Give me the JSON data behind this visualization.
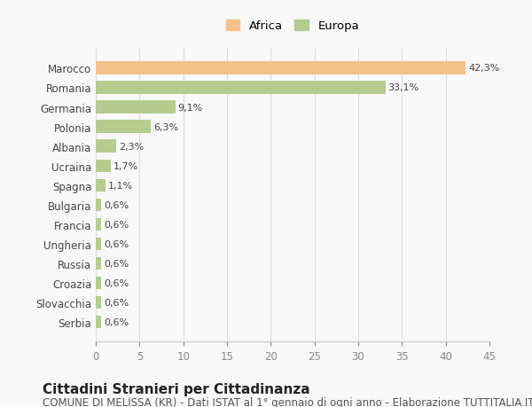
{
  "categories": [
    "Marocco",
    "Romania",
    "Germania",
    "Polonia",
    "Albania",
    "Ucraina",
    "Spagna",
    "Bulgaria",
    "Francia",
    "Ungheria",
    "Russia",
    "Croazia",
    "Slovacchia",
    "Serbia"
  ],
  "values": [
    42.3,
    33.1,
    9.1,
    6.3,
    2.3,
    1.7,
    1.1,
    0.6,
    0.6,
    0.6,
    0.6,
    0.6,
    0.6,
    0.6
  ],
  "labels": [
    "42,3%",
    "33,1%",
    "9,1%",
    "6,3%",
    "2,3%",
    "1,7%",
    "1,1%",
    "0,6%",
    "0,6%",
    "0,6%",
    "0,6%",
    "0,6%",
    "0,6%",
    "0,6%"
  ],
  "continents": [
    "Africa",
    "Europa",
    "Europa",
    "Europa",
    "Europa",
    "Europa",
    "Europa",
    "Europa",
    "Europa",
    "Europa",
    "Europa",
    "Europa",
    "Europa",
    "Europa"
  ],
  "colors": {
    "Africa": "#f5c18a",
    "Europa": "#b5cc8e"
  },
  "legend_labels": [
    "Africa",
    "Europa"
  ],
  "xlim": [
    0,
    45
  ],
  "xticks": [
    0,
    5,
    10,
    15,
    20,
    25,
    30,
    35,
    40,
    45
  ],
  "title": "Cittadini Stranieri per Cittadinanza",
  "subtitle": "COMUNE DI MELISSA (KR) - Dati ISTAT al 1° gennaio di ogni anno - Elaborazione TUTTITALIA.IT",
  "background_color": "#f8f8f8",
  "bar_height": 0.65,
  "title_fontsize": 11,
  "subtitle_fontsize": 8.5,
  "label_fontsize": 8,
  "tick_fontsize": 8.5
}
